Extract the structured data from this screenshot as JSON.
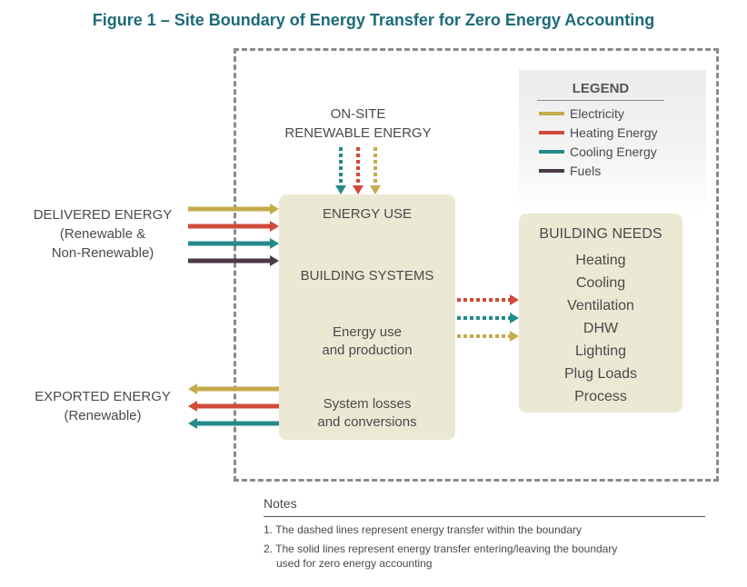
{
  "title": "Figure 1 – Site Boundary of Energy Transfer for Zero Energy Accounting",
  "legend": {
    "title": "LEGEND",
    "items": [
      {
        "label": "Electricity",
        "color": "#c5ab4c"
      },
      {
        "label": "Heating Energy",
        "color": "#d14a3a"
      },
      {
        "label": "Cooling Energy",
        "color": "#238b8a"
      },
      {
        "label": "Fuels",
        "color": "#4a3a48"
      }
    ]
  },
  "onsite": {
    "line1": "ON-SITE",
    "line2": "RENEWABLE ENERGY"
  },
  "delivered": {
    "line1": "DELIVERED ENERGY",
    "line2": "(Renewable &",
    "line3": "Non-Renewable)"
  },
  "exported": {
    "line1": "EXPORTED ENERGY",
    "line2": "(Renewable)"
  },
  "center": {
    "energy_use": "ENERGY USE",
    "building_systems": "BUILDING SYSTEMS",
    "production_1": "Energy use",
    "production_2": "and production",
    "losses_1": "System losses",
    "losses_2": "and conversions"
  },
  "needs": {
    "title": "BUILDING NEEDS",
    "items": [
      "Heating",
      "Cooling",
      "Ventilation",
      "DHW",
      "Lighting",
      "Plug Loads",
      "Process"
    ]
  },
  "notes": {
    "title": "Notes",
    "items": [
      "1. The dashed lines represent energy transfer within the boundary",
      "2. The solid lines represent energy transfer entering/leaving the boundary",
      "used for zero energy accounting"
    ]
  },
  "colors": {
    "title": "#1b6b78",
    "box": "#ebe8d4",
    "boundary": "#8a8a8a"
  }
}
